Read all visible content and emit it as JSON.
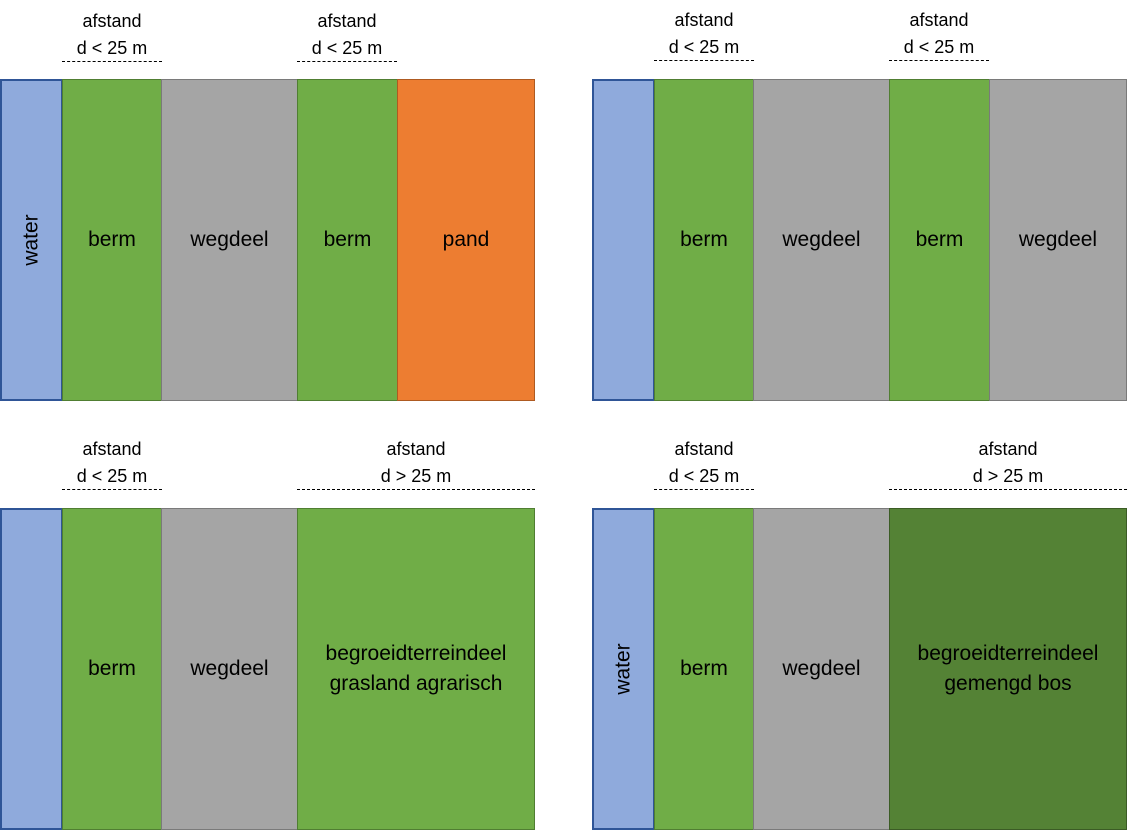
{
  "panels": [
    {
      "distances": [
        {
          "label": "afstand",
          "value": "d < 25 m"
        },
        {
          "label": "afstand",
          "value": "d < 25 m"
        }
      ],
      "zones": [
        {
          "label": "water",
          "fill": "#8faadc"
        },
        {
          "label": "berm",
          "fill": "#70ad47"
        },
        {
          "label": "wegdeel",
          "fill": "#a5a5a5"
        },
        {
          "label": "berm",
          "fill": "#70ad47"
        },
        {
          "label": "pand",
          "fill": "#ed7d31"
        }
      ]
    },
    {
      "distances": [
        {
          "label": "afstand",
          "value": "d < 25 m"
        },
        {
          "label": "afstand",
          "value": "d < 25 m"
        }
      ],
      "zones": [
        {
          "label": "",
          "fill": "#8faadc"
        },
        {
          "label": "berm",
          "fill": "#70ad47"
        },
        {
          "label": "wegdeel",
          "fill": "#a5a5a5"
        },
        {
          "label": "berm",
          "fill": "#70ad47"
        },
        {
          "label": "wegdeel",
          "fill": "#a5a5a5"
        }
      ]
    },
    {
      "distances": [
        {
          "label": "afstand",
          "value": "d < 25 m"
        },
        {
          "label": "afstand",
          "value": "d > 25 m"
        }
      ],
      "zones": [
        {
          "label": "",
          "fill": "#8faadc"
        },
        {
          "label": "berm",
          "fill": "#70ad47"
        },
        {
          "label": "wegdeel",
          "fill": "#a5a5a5"
        },
        {
          "label": "begroeidterreindeel\ngrasland agrarisch",
          "fill": "#70ad47"
        }
      ]
    },
    {
      "distances": [
        {
          "label": "afstand",
          "value": "d < 25 m"
        },
        {
          "label": "afstand",
          "value": "d > 25 m"
        }
      ],
      "zones": [
        {
          "label": "water",
          "fill": "#8faadc"
        },
        {
          "label": "berm",
          "fill": "#70ad47"
        },
        {
          "label": "wegdeel",
          "fill": "#a5a5a5"
        },
        {
          "label": "begroeidterreindeel\ngemengd bos",
          "fill": "#548235"
        }
      ]
    }
  ]
}
